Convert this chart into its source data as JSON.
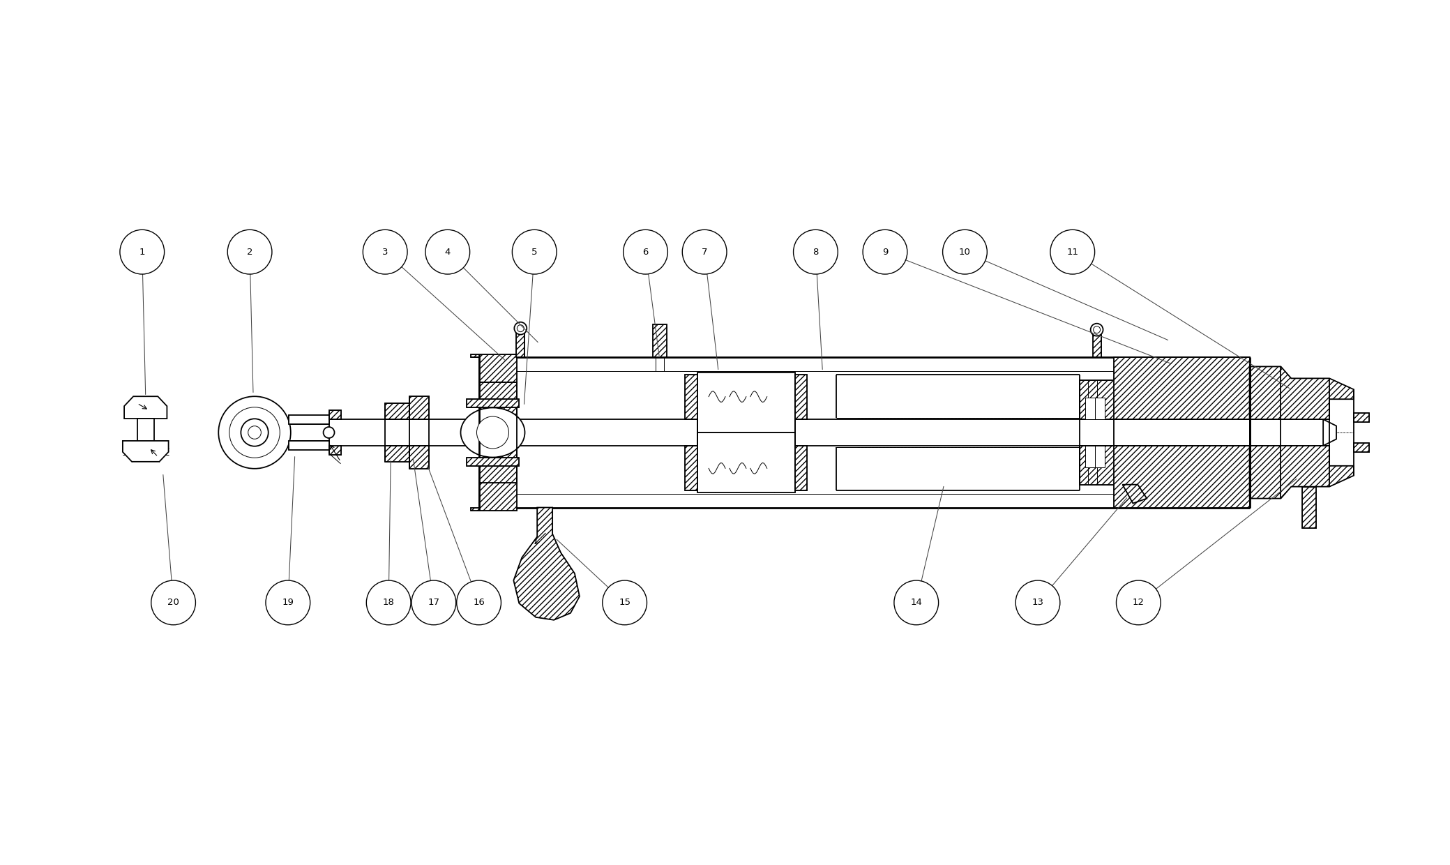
{
  "bg_color": "#ffffff",
  "line_color": "#000000",
  "fig_width": 20.79,
  "fig_height": 12.4,
  "callouts": [
    [
      1,
      2.0,
      8.8,
      2.05,
      6.72
    ],
    [
      2,
      3.55,
      8.8,
      3.6,
      6.75
    ],
    [
      3,
      5.5,
      8.8,
      7.25,
      7.22
    ],
    [
      4,
      6.4,
      8.8,
      7.72,
      7.48
    ],
    [
      5,
      7.65,
      8.8,
      7.5,
      6.58
    ],
    [
      6,
      9.25,
      8.8,
      9.45,
      7.28
    ],
    [
      7,
      10.1,
      8.8,
      10.3,
      7.08
    ],
    [
      8,
      11.7,
      8.8,
      11.8,
      7.08
    ],
    [
      9,
      12.7,
      8.8,
      16.85,
      7.18
    ],
    [
      10,
      13.85,
      8.8,
      16.8,
      7.52
    ],
    [
      11,
      15.4,
      8.8,
      18.55,
      6.82
    ],
    [
      12,
      16.35,
      3.75,
      18.65,
      5.55
    ],
    [
      13,
      14.9,
      3.75,
      16.2,
      5.28
    ],
    [
      14,
      13.15,
      3.75,
      13.55,
      5.45
    ],
    [
      15,
      8.95,
      3.75,
      7.95,
      4.68
    ],
    [
      16,
      6.85,
      3.75,
      6.1,
      5.75
    ],
    [
      17,
      6.2,
      3.75,
      5.9,
      5.85
    ],
    [
      18,
      5.55,
      3.75,
      5.58,
      5.82
    ],
    [
      19,
      4.1,
      3.75,
      4.2,
      5.88
    ],
    [
      20,
      2.45,
      3.75,
      2.3,
      5.62
    ]
  ]
}
